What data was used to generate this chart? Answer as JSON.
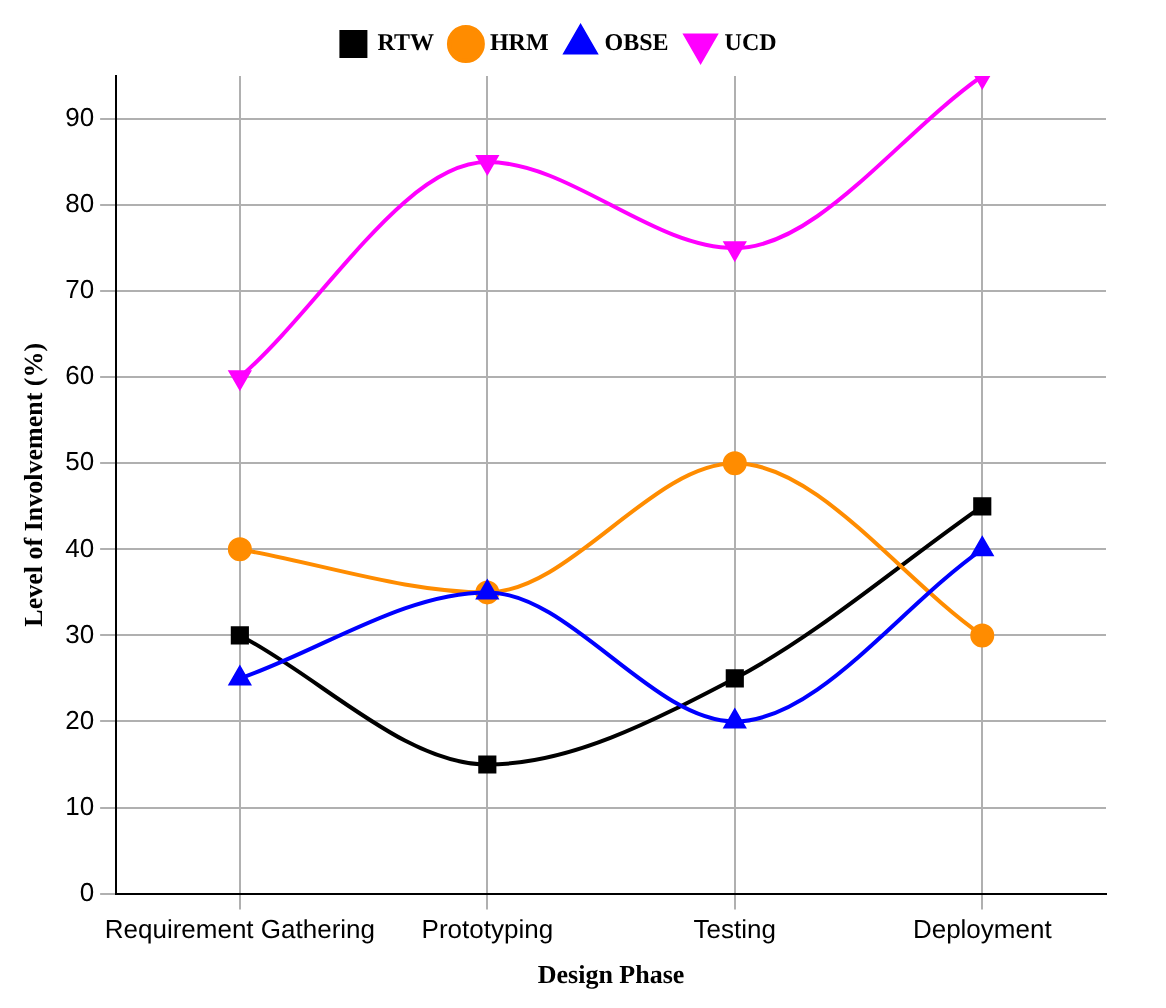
{
  "chart_data": {
    "type": "line",
    "xlabel": "Design Phase",
    "ylabel": "Level of Involvement (%)",
    "categories": [
      "Requirement Gathering",
      "Prototyping",
      "Testing",
      "Deployment"
    ],
    "series": [
      {
        "name": "RTW",
        "color": "#000000",
        "marker": "square",
        "values": [
          30,
          15,
          25,
          45
        ]
      },
      {
        "name": "HRM",
        "color": "#ff8c00",
        "marker": "circle",
        "values": [
          40,
          35,
          50,
          30
        ]
      },
      {
        "name": "OBSE",
        "color": "#0000ff",
        "marker": "triangle",
        "values": [
          25,
          35,
          20,
          40
        ]
      },
      {
        "name": "UCD",
        "color": "#ff00ff",
        "marker": "triangle-down",
        "values": [
          60,
          85,
          75,
          95
        ]
      }
    ],
    "ylim": [
      0,
      95
    ],
    "yticks": [
      0,
      10,
      20,
      30,
      40,
      50,
      60,
      70,
      80,
      90
    ],
    "grid": true,
    "legend": "top",
    "line_style": "solid"
  }
}
